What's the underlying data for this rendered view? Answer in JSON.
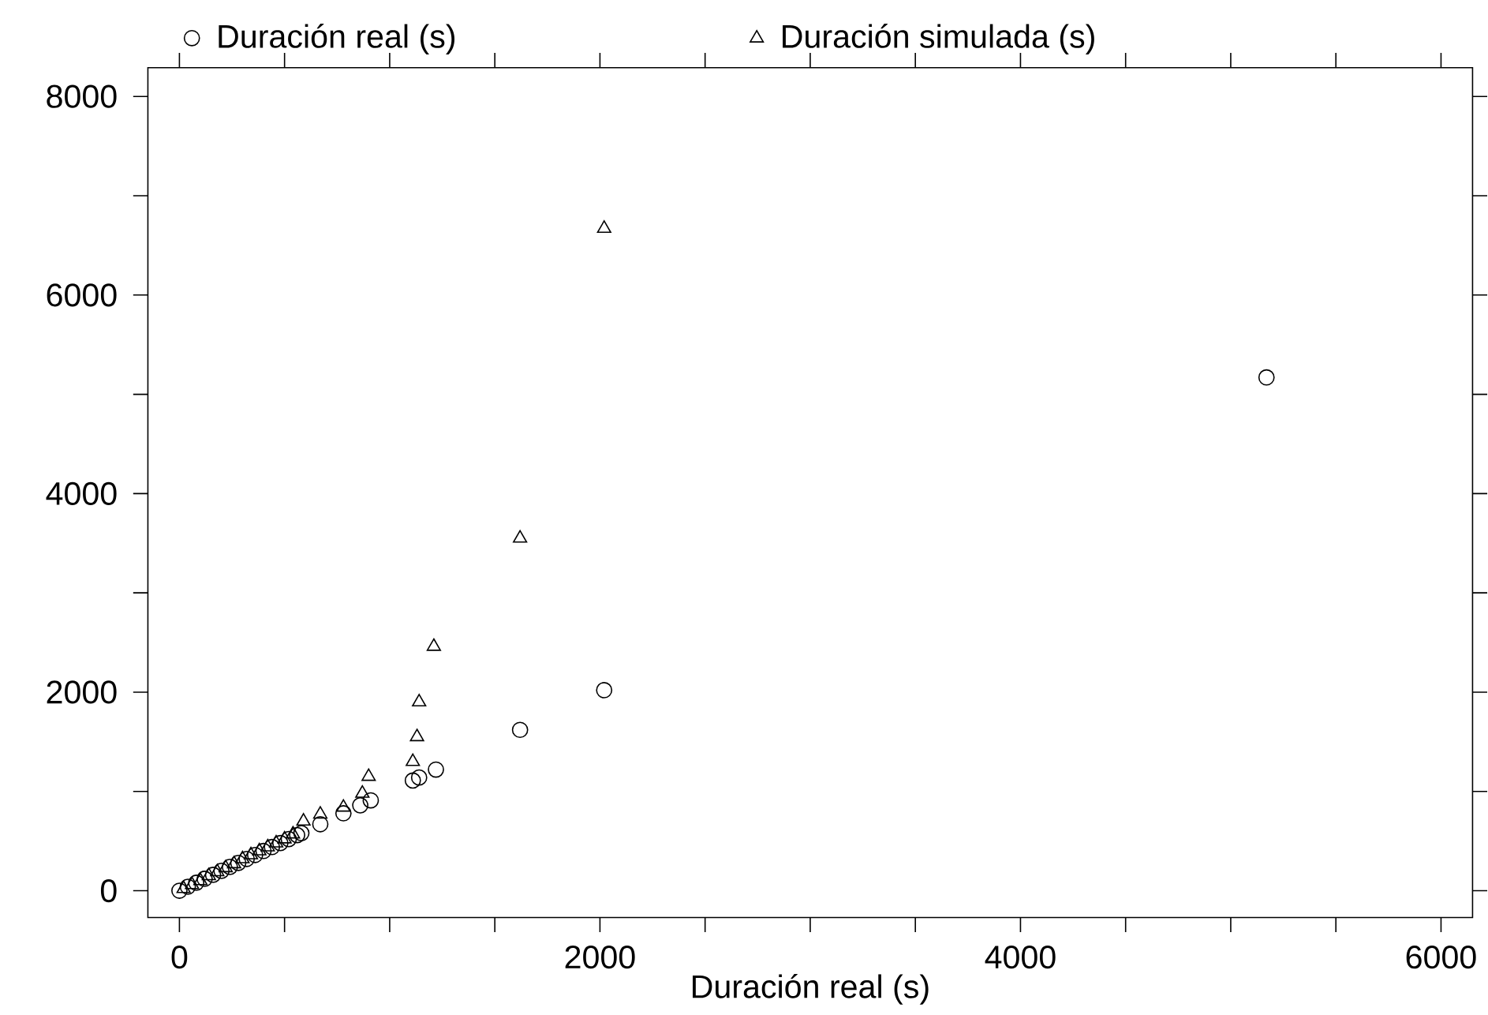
{
  "chart_data": {
    "type": "scatter",
    "xlabel": "Duración real (s)",
    "xlim": [
      -150,
      6150
    ],
    "ylim": [
      -270,
      8290
    ],
    "xticks": [
      0,
      {
        "value": 500,
        "label": null
      },
      {
        "value": 1000,
        "label": null
      },
      {
        "value": 1500,
        "label": null
      },
      2000,
      {
        "value": 2500,
        "label": null
      },
      {
        "value": 3000,
        "label": null
      },
      {
        "value": 3500,
        "label": null
      },
      4000,
      {
        "value": 4500,
        "label": null
      },
      {
        "value": 5000,
        "label": null
      },
      {
        "value": 5500,
        "label": null
      },
      6000
    ],
    "yticks": [
      0,
      {
        "value": 1000,
        "label": null
      },
      2000,
      {
        "value": 3000,
        "label": null
      },
      4000,
      {
        "value": 5000,
        "label": null
      },
      6000,
      {
        "value": 7000,
        "label": null
      },
      8000
    ],
    "legend": "top",
    "grid": false,
    "series": [
      {
        "name": "Duración real (s)",
        "color": "#000000",
        "marker": "circle",
        "x": [
          0,
          40,
          80,
          120,
          160,
          200,
          240,
          280,
          320,
          360,
          400,
          440,
          480,
          520,
          560,
          580,
          670,
          780,
          860,
          910,
          1110,
          1140,
          1220,
          1620,
          2020,
          5170
        ],
        "values": [
          0,
          40,
          80,
          120,
          160,
          200,
          240,
          280,
          320,
          360,
          400,
          440,
          480,
          520,
          560,
          580,
          670,
          780,
          860,
          910,
          1110,
          1140,
          1220,
          1620,
          2020,
          5170
        ]
      },
      {
        "name": "Duración simulada (s)",
        "color": "#000000",
        "marker": "triangle",
        "x": [
          20,
          60,
          100,
          140,
          180,
          220,
          260,
          300,
          340,
          380,
          420,
          460,
          500,
          540,
          590,
          670,
          780,
          870,
          900,
          1110,
          1130,
          1140,
          1210,
          1620,
          2020
        ],
        "values": [
          20,
          60,
          100,
          150,
          190,
          230,
          270,
          320,
          360,
          400,
          440,
          480,
          520,
          570,
          700,
          770,
          840,
          980,
          1150,
          1300,
          1550,
          1900,
          2460,
          3550,
          6670
        ]
      }
    ]
  }
}
